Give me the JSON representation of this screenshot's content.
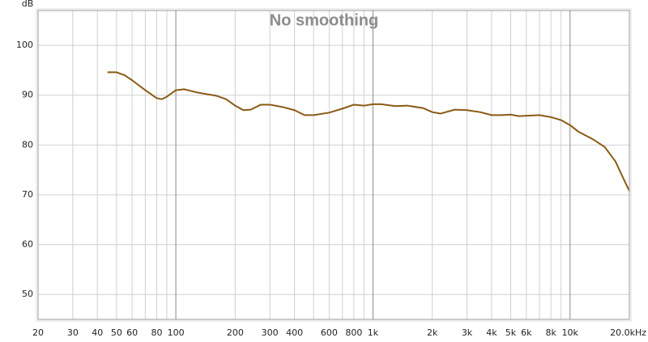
{
  "chart_data": {
    "type": "line",
    "title": "No smoothing",
    "y_label": "dB",
    "x_log": true,
    "grid": true,
    "xlim": [
      20,
      20000
    ],
    "ylim": [
      45,
      107
    ],
    "xticks": [
      20,
      30,
      40,
      50,
      60,
      80,
      100,
      200,
      300,
      400,
      600,
      800,
      {
        "value": 1000,
        "label": "1k"
      },
      {
        "value": 2000,
        "label": "2k"
      },
      {
        "value": 3000,
        "label": "3k"
      },
      {
        "value": 4000,
        "label": "4k"
      },
      {
        "value": 5000,
        "label": "5k"
      },
      {
        "value": 6000,
        "label": "6k"
      },
      {
        "value": 8000,
        "label": "8k"
      },
      {
        "value": 10000,
        "label": "10k"
      },
      {
        "value": 20000,
        "label": "20.0kHz"
      }
    ],
    "x_minor_ticks": [
      70,
      90,
      500,
      700,
      900,
      7000,
      9000
    ],
    "yticks": [
      50,
      60,
      70,
      80,
      90,
      100
    ],
    "series": [
      {
        "color": "#8a5a14",
        "x": [
          45,
          50,
          55,
          60,
          70,
          80,
          85,
          90,
          100,
          110,
          130,
          160,
          180,
          200,
          220,
          240,
          270,
          300,
          350,
          400,
          450,
          500,
          600,
          700,
          800,
          900,
          1000,
          1100,
          1300,
          1500,
          1800,
          2000,
          2200,
          2600,
          3000,
          3500,
          4000,
          4500,
          5000,
          5500,
          7000,
          8000,
          9000,
          10000,
          11000,
          13000,
          15000,
          17000,
          19000,
          20000
        ],
        "values": [
          94.6,
          94.6,
          94.0,
          93.0,
          91.0,
          89.4,
          89.2,
          89.7,
          91.0,
          91.2,
          90.5,
          89.9,
          89.2,
          87.9,
          87.0,
          87.1,
          88.1,
          88.1,
          87.6,
          87.0,
          86.0,
          86.0,
          86.5,
          87.3,
          88.1,
          87.9,
          88.2,
          88.2,
          87.8,
          87.9,
          87.4,
          86.6,
          86.3,
          87.1,
          87.0,
          86.6,
          86.0,
          86.0,
          86.1,
          85.8,
          86.0,
          85.6,
          85.0,
          84.0,
          82.7,
          81.2,
          79.6,
          76.7,
          72.6,
          70.8
        ]
      }
    ]
  }
}
